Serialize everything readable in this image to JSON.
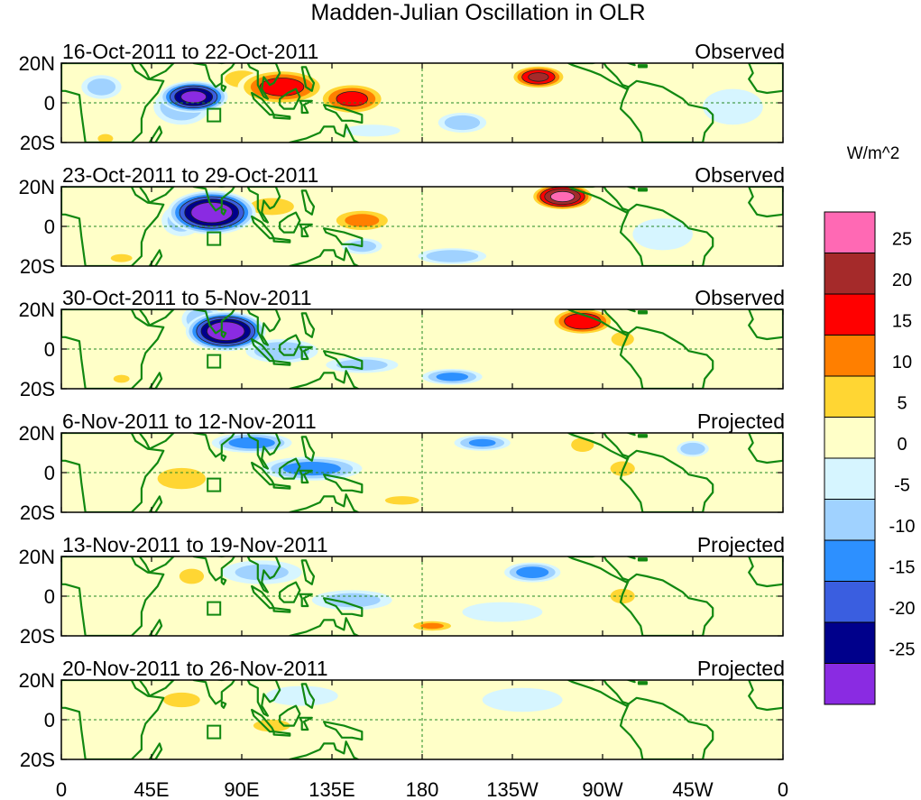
{
  "chart_data": {
    "type": "heatmap",
    "title": "Madden-Julian Oscillation in OLR",
    "colorbar": {
      "label": "W/m^2",
      "levels": [
        "25",
        "20",
        "15",
        "10",
        "5",
        "0",
        "-5",
        "-10",
        "-15",
        "-20",
        "-25"
      ],
      "colors": [
        "#ff69b4",
        "#a52a2a",
        "#ff0000",
        "#ff7f00",
        "#ffd633",
        "#ffffc8",
        "#d6f5ff",
        "#a0d2ff",
        "#2d90ff",
        "#3a5ee0",
        "#00008b",
        "#8a2be2"
      ]
    },
    "x_ticks": [
      "0",
      "45E",
      "90E",
      "135E",
      "180",
      "135W",
      "90W",
      "45W",
      "0"
    ],
    "y_ticks": [
      "20N",
      "0",
      "20S"
    ],
    "colors": {
      "land": "#118811",
      "grid": "#228822"
    },
    "panels": [
      {
        "dates": "16-Oct-2011 to 22-Oct-2011",
        "status": "Observed",
        "features": [
          {
            "lon": 66,
            "lat": 3,
            "amp": -27,
            "wl": 17,
            "wt": 8
          },
          {
            "lon": 60,
            "lat": -2,
            "amp": -10,
            "wl": 14,
            "wt": 9
          },
          {
            "lon": 20,
            "lat": 8,
            "amp": -8,
            "wl": 10,
            "wt": 6
          },
          {
            "lon": 110,
            "lat": 8,
            "amp": 18,
            "wl": 22,
            "wt": 9
          },
          {
            "lon": 145,
            "lat": 2,
            "amp": 17,
            "wl": 17,
            "wt": 8
          },
          {
            "lon": 90,
            "lat": 12,
            "amp": 8,
            "wl": 12,
            "wt": 6
          },
          {
            "lon": 238,
            "lat": 13,
            "amp": 21,
            "wl": 14,
            "wt": 6
          },
          {
            "lon": 200,
            "lat": -10,
            "amp": -9,
            "wl": 12,
            "wt": 5
          },
          {
            "lon": 190,
            "lat": 5,
            "amp": 4,
            "wl": 20,
            "wt": 10
          },
          {
            "lon": 335,
            "lat": -2,
            "amp": -5,
            "wl": 15,
            "wt": 9
          },
          {
            "lon": 22,
            "lat": -18,
            "amp": 10,
            "wl": 5,
            "wt": 3
          },
          {
            "lon": 155,
            "lat": -14,
            "amp": -5,
            "wl": 14,
            "wt": 3
          }
        ]
      },
      {
        "dates": "23-Oct-2011 to 29-Oct-2011",
        "status": "Observed",
        "features": [
          {
            "lon": 75,
            "lat": 7,
            "amp": -30,
            "wl": 22,
            "wt": 11
          },
          {
            "lon": 60,
            "lat": 3,
            "amp": -8,
            "wl": 10,
            "wt": 8
          },
          {
            "lon": 250,
            "lat": 15,
            "amp": 27,
            "wl": 16,
            "wt": 7
          },
          {
            "lon": 150,
            "lat": 3,
            "amp": 12,
            "wl": 16,
            "wt": 6
          },
          {
            "lon": 105,
            "lat": 10,
            "amp": 6,
            "wl": 18,
            "wt": 7
          },
          {
            "lon": 195,
            "lat": -15,
            "amp": -10,
            "wl": 17,
            "wt": 4
          },
          {
            "lon": 150,
            "lat": -10,
            "amp": -8,
            "wl": 10,
            "wt": 4
          },
          {
            "lon": 30,
            "lat": -16,
            "amp": 7,
            "wl": 8,
            "wt": 3
          },
          {
            "lon": 300,
            "lat": -4,
            "amp": -5,
            "wl": 15,
            "wt": 8
          },
          {
            "lon": 215,
            "lat": 2,
            "amp": 3,
            "wl": 25,
            "wt": 8
          }
        ]
      },
      {
        "dates": "30-Oct-2011 to 5-Nov-2011",
        "status": "Observed",
        "features": [
          {
            "lon": 82,
            "lat": 9,
            "amp": -30,
            "wl": 20,
            "wt": 10
          },
          {
            "lon": 110,
            "lat": -1,
            "amp": -10,
            "wl": 18,
            "wt": 6
          },
          {
            "lon": 70,
            "lat": 15,
            "amp": -10,
            "wl": 10,
            "wt": 7
          },
          {
            "lon": 260,
            "lat": 14,
            "amp": 20,
            "wl": 16,
            "wt": 7
          },
          {
            "lon": 280,
            "lat": 5,
            "amp": 8,
            "wl": 8,
            "wt": 5
          },
          {
            "lon": 195,
            "lat": -14,
            "amp": -12,
            "wl": 15,
            "wt": 4
          },
          {
            "lon": 150,
            "lat": -8,
            "amp": -8,
            "wl": 18,
            "wt": 4
          },
          {
            "lon": 30,
            "lat": -15,
            "amp": 7,
            "wl": 6,
            "wt": 3
          },
          {
            "lon": 150,
            "lat": 10,
            "amp": 3,
            "wl": 20,
            "wt": 6
          },
          {
            "lon": 330,
            "lat": 0,
            "amp": 3,
            "wl": 20,
            "wt": 10
          }
        ]
      },
      {
        "dates": "6-Nov-2011 to 12-Nov-2011",
        "status": "Projected",
        "features": [
          {
            "lon": 95,
            "lat": 15,
            "amp": -13,
            "wl": 20,
            "wt": 5
          },
          {
            "lon": 125,
            "lat": 2,
            "amp": -13,
            "wl": 25,
            "wt": 6
          },
          {
            "lon": 210,
            "lat": 15,
            "amp": -11,
            "wl": 14,
            "wt": 4
          },
          {
            "lon": 315,
            "lat": 12,
            "amp": -10,
            "wl": 8,
            "wt": 4
          },
          {
            "lon": 260,
            "lat": 14,
            "amp": 8,
            "wl": 8,
            "wt": 5
          },
          {
            "lon": 280,
            "lat": 2,
            "amp": 6,
            "wl": 10,
            "wt": 6
          },
          {
            "lon": 60,
            "lat": -3,
            "amp": 7,
            "wl": 18,
            "wt": 8
          },
          {
            "lon": 170,
            "lat": -14,
            "amp": 8,
            "wl": 12,
            "wt": 3
          },
          {
            "lon": 25,
            "lat": 5,
            "amp": 4,
            "wl": 15,
            "wt": 10
          }
        ]
      },
      {
        "dates": "13-Nov-2011 to 19-Nov-2011",
        "status": "Projected",
        "features": [
          {
            "lon": 65,
            "lat": 10,
            "amp": 10,
            "wl": 8,
            "wt": 5
          },
          {
            "lon": 100,
            "lat": 12,
            "amp": -7,
            "wl": 20,
            "wt": 6
          },
          {
            "lon": 145,
            "lat": -2,
            "amp": -8,
            "wl": 20,
            "wt": 5
          },
          {
            "lon": 185,
            "lat": -15,
            "amp": 11,
            "wl": 12,
            "wt": 3
          },
          {
            "lon": 235,
            "lat": 12,
            "amp": -13,
            "wl": 14,
            "wt": 5
          },
          {
            "lon": 280,
            "lat": 0,
            "amp": 6,
            "wl": 10,
            "wt": 6
          },
          {
            "lon": 220,
            "lat": -8,
            "amp": -4,
            "wl": 20,
            "wt": 5
          },
          {
            "lon": 30,
            "lat": 0,
            "amp": 3,
            "wl": 20,
            "wt": 10
          }
        ]
      },
      {
        "dates": "20-Nov-2011 to 26-Nov-2011",
        "status": "Projected",
        "features": [
          {
            "lon": 60,
            "lat": 10,
            "amp": 6,
            "wl": 15,
            "wt": 6
          },
          {
            "lon": 105,
            "lat": -3,
            "amp": 6,
            "wl": 15,
            "wt": 5
          },
          {
            "lon": 120,
            "lat": 12,
            "amp": -5,
            "wl": 18,
            "wt": 5
          },
          {
            "lon": 160,
            "lat": -14,
            "amp": 4,
            "wl": 15,
            "wt": 4
          },
          {
            "lon": 230,
            "lat": 10,
            "amp": -4,
            "wl": 20,
            "wt": 6
          },
          {
            "lon": 280,
            "lat": 0,
            "amp": 4,
            "wl": 10,
            "wt": 6
          }
        ]
      }
    ]
  }
}
